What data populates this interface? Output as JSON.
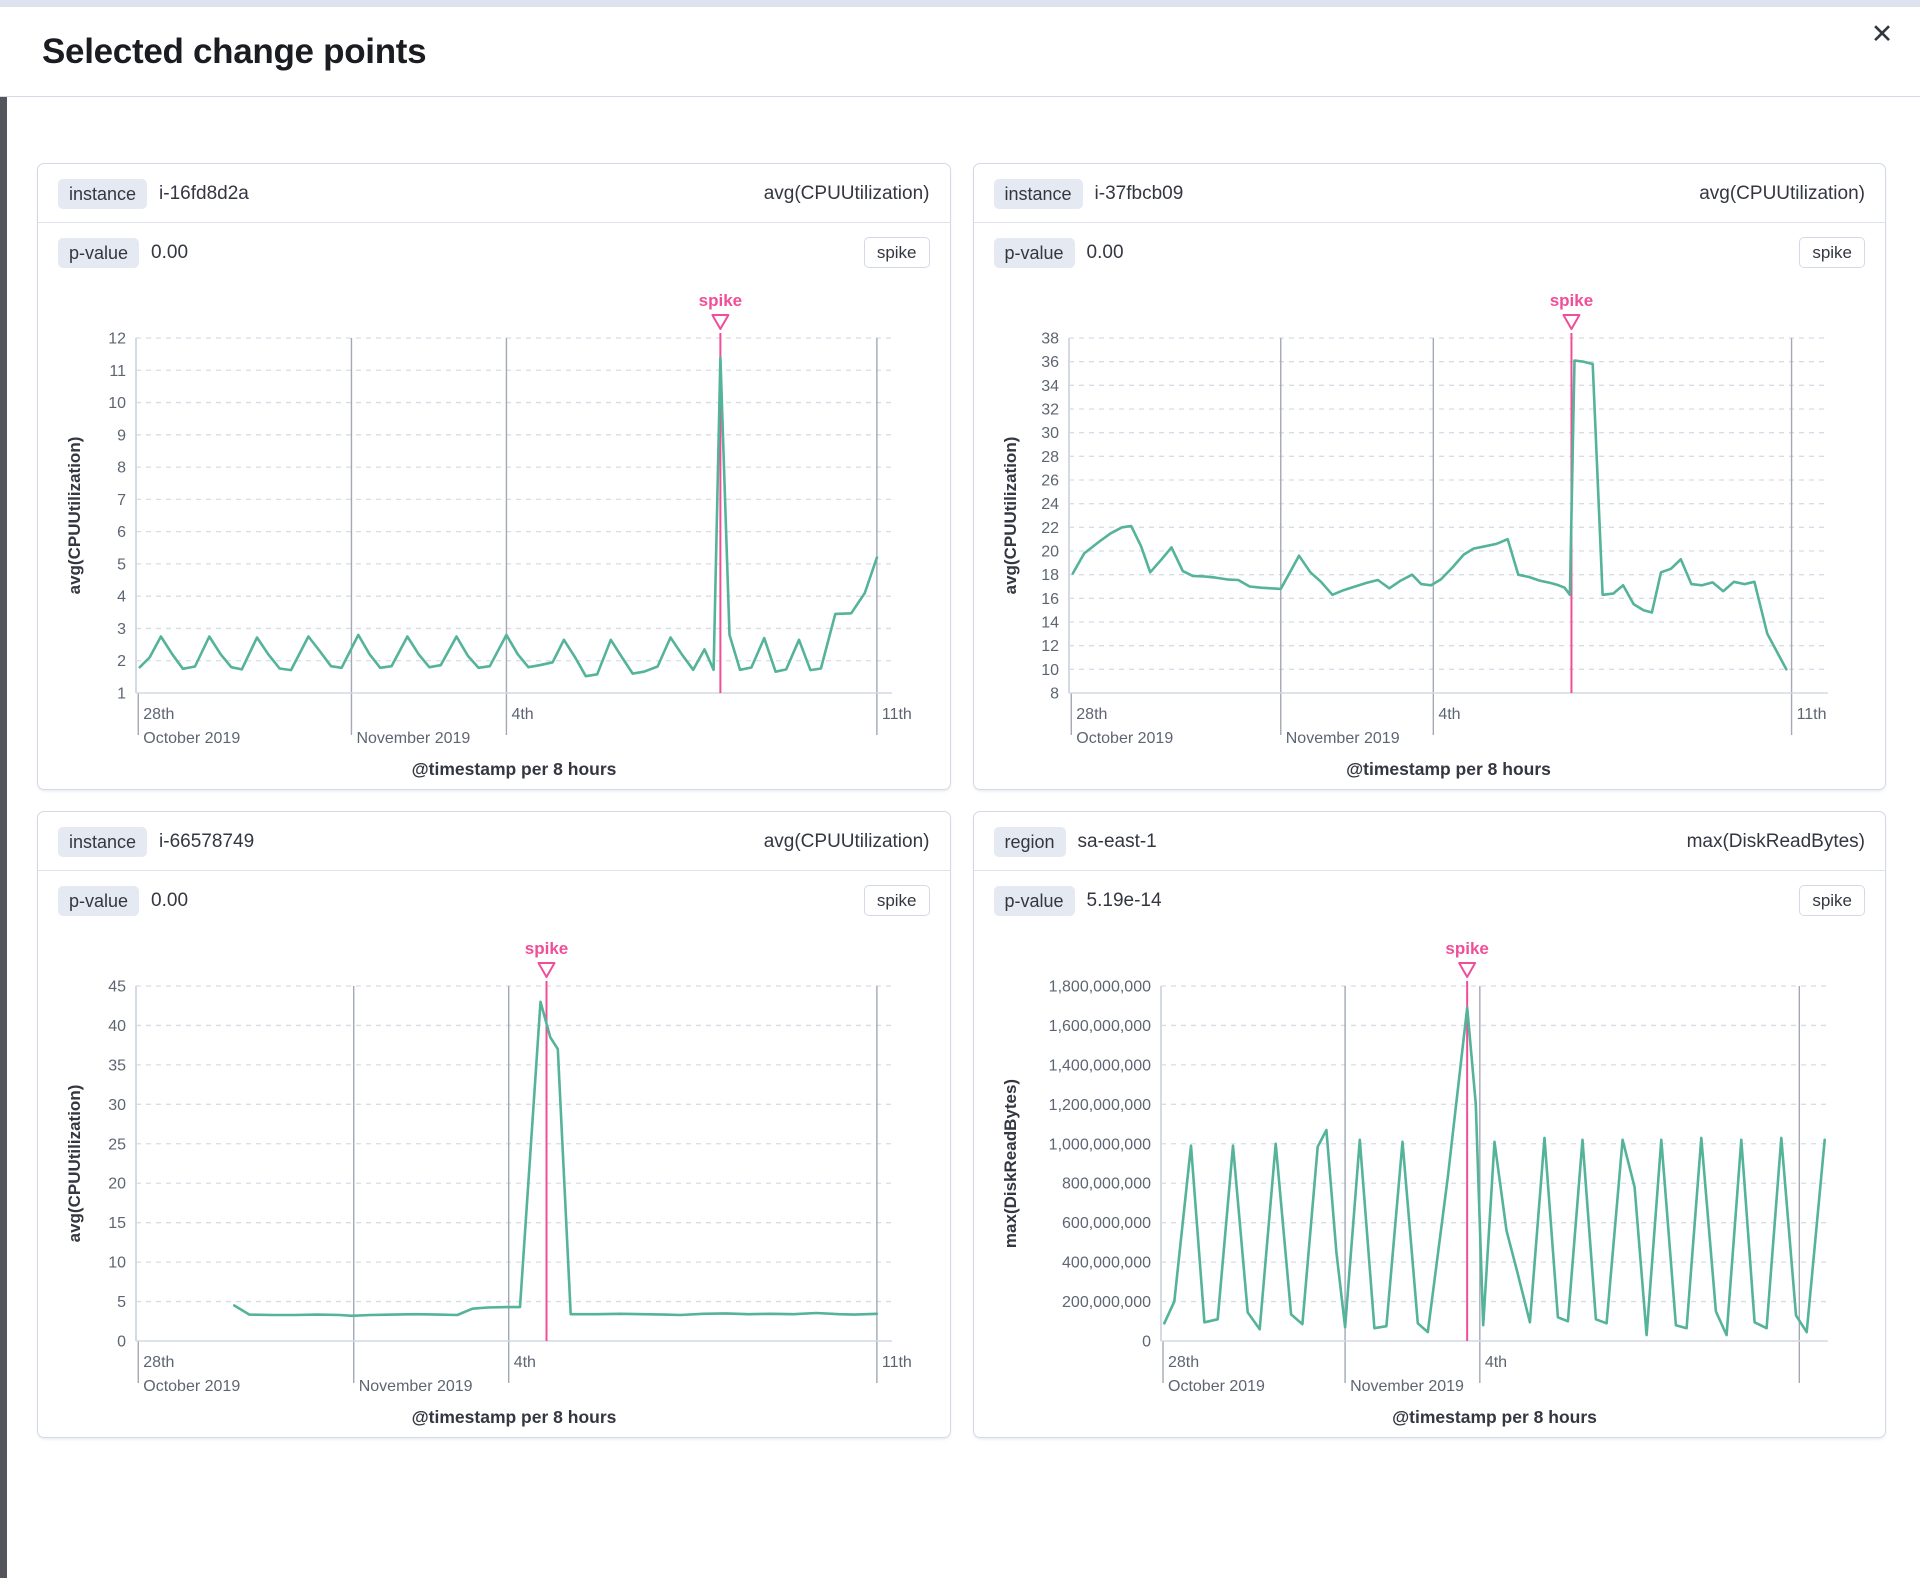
{
  "modal": {
    "title": "Selected change points"
  },
  "icons": {
    "close": "✕"
  },
  "colors": {
    "line": "#54b399",
    "accent": "#f04e98",
    "grid_dash": "#d8dce6",
    "grid_vertical": "#a2a8b4",
    "axis": "#d3dae6",
    "tick_text": "#5e6572",
    "axis_title": "#343741"
  },
  "chart_data": [
    {
      "type": "line",
      "field_badge": "instance",
      "field_value": "i-16fd8d2a",
      "metric": "avg(CPUUtilization)",
      "pvalue_label": "p-value",
      "pvalue": "0.00",
      "badge": "spike",
      "annotation": "spike",
      "xlabel": "@timestamp per 8 hours",
      "ylabel": "avg(CPUUtilization)",
      "ylim": [
        1,
        12
      ],
      "y_labels": [
        "1",
        "2",
        "3",
        "4",
        "5",
        "6",
        "7",
        "8",
        "9",
        "10",
        "11",
        "12"
      ],
      "x_ticks": [
        {
          "f": 0.003,
          "l1": "28th",
          "l2": "October 2019",
          "grid": false
        },
        {
          "f": 0.285,
          "l1": "",
          "l2": "November 2019",
          "grid": true
        },
        {
          "f": 0.49,
          "l1": "4th",
          "l2": "",
          "grid": true
        },
        {
          "f": 0.98,
          "l1": "11th",
          "l2": "",
          "grid": true
        }
      ],
      "spike_f": 0.773,
      "points": [
        [
          0.005,
          1.8
        ],
        [
          0.018,
          2.1
        ],
        [
          0.033,
          2.75
        ],
        [
          0.048,
          2.2
        ],
        [
          0.062,
          1.75
        ],
        [
          0.078,
          1.82
        ],
        [
          0.097,
          2.75
        ],
        [
          0.112,
          2.2
        ],
        [
          0.126,
          1.8
        ],
        [
          0.14,
          1.73
        ],
        [
          0.16,
          2.72
        ],
        [
          0.175,
          2.2
        ],
        [
          0.19,
          1.76
        ],
        [
          0.205,
          1.71
        ],
        [
          0.228,
          2.75
        ],
        [
          0.243,
          2.3
        ],
        [
          0.258,
          1.83
        ],
        [
          0.272,
          1.78
        ],
        [
          0.294,
          2.8
        ],
        [
          0.309,
          2.2
        ],
        [
          0.323,
          1.78
        ],
        [
          0.338,
          1.83
        ],
        [
          0.359,
          2.75
        ],
        [
          0.374,
          2.2
        ],
        [
          0.388,
          1.8
        ],
        [
          0.403,
          1.86
        ],
        [
          0.424,
          2.75
        ],
        [
          0.439,
          2.15
        ],
        [
          0.453,
          1.78
        ],
        [
          0.468,
          1.83
        ],
        [
          0.49,
          2.8
        ],
        [
          0.505,
          2.2
        ],
        [
          0.519,
          1.8
        ],
        [
          0.534,
          1.86
        ],
        [
          0.551,
          1.95
        ],
        [
          0.566,
          2.65
        ],
        [
          0.581,
          2.1
        ],
        [
          0.595,
          1.52
        ],
        [
          0.61,
          1.58
        ],
        [
          0.628,
          2.65
        ],
        [
          0.643,
          2.1
        ],
        [
          0.657,
          1.6
        ],
        [
          0.672,
          1.66
        ],
        [
          0.69,
          1.82
        ],
        [
          0.707,
          2.72
        ],
        [
          0.722,
          2.2
        ],
        [
          0.737,
          1.72
        ],
        [
          0.752,
          2.35
        ],
        [
          0.764,
          1.72
        ],
        [
          0.773,
          11.4
        ],
        [
          0.785,
          2.8
        ],
        [
          0.799,
          1.72
        ],
        [
          0.814,
          1.79
        ],
        [
          0.831,
          2.7
        ],
        [
          0.846,
          1.66
        ],
        [
          0.86,
          1.73
        ],
        [
          0.877,
          2.65
        ],
        [
          0.892,
          1.71
        ],
        [
          0.906,
          1.76
        ],
        [
          0.925,
          3.45
        ],
        [
          0.946,
          3.47
        ],
        [
          0.964,
          4.1
        ],
        [
          0.98,
          5.2
        ]
      ]
    },
    {
      "type": "line",
      "field_badge": "instance",
      "field_value": "i-37fbcb09",
      "metric": "avg(CPUUtilization)",
      "pvalue_label": "p-value",
      "pvalue": "0.00",
      "badge": "spike",
      "annotation": "spike",
      "xlabel": "@timestamp per 8 hours",
      "ylabel": "avg(CPUUtilization)",
      "ylim": [
        8,
        38
      ],
      "y_labels": [
        "8",
        "10",
        "12",
        "14",
        "16",
        "18",
        "20",
        "22",
        "24",
        "26",
        "28",
        "30",
        "32",
        "34",
        "36",
        "38"
      ],
      "x_ticks": [
        {
          "f": 0.003,
          "l1": "28th",
          "l2": "October 2019",
          "grid": false
        },
        {
          "f": 0.279,
          "l1": "",
          "l2": "November 2019",
          "grid": true
        },
        {
          "f": 0.48,
          "l1": "4th",
          "l2": "",
          "grid": true
        },
        {
          "f": 0.952,
          "l1": "11th",
          "l2": "",
          "grid": true
        }
      ],
      "spike_f": 0.662,
      "points": [
        [
          0.005,
          18.1
        ],
        [
          0.02,
          19.8
        ],
        [
          0.04,
          20.8
        ],
        [
          0.055,
          21.5
        ],
        [
          0.07,
          22.0
        ],
        [
          0.082,
          22.1
        ],
        [
          0.095,
          20.4
        ],
        [
          0.107,
          18.2
        ],
        [
          0.122,
          19.3
        ],
        [
          0.135,
          20.3
        ],
        [
          0.15,
          18.3
        ],
        [
          0.163,
          17.9
        ],
        [
          0.178,
          17.85
        ],
        [
          0.193,
          17.75
        ],
        [
          0.208,
          17.6
        ],
        [
          0.223,
          17.55
        ],
        [
          0.238,
          17.0
        ],
        [
          0.253,
          16.9
        ],
        [
          0.266,
          16.85
        ],
        [
          0.279,
          16.8
        ],
        [
          0.292,
          18.3
        ],
        [
          0.303,
          19.6
        ],
        [
          0.318,
          18.2
        ],
        [
          0.332,
          17.4
        ],
        [
          0.347,
          16.3
        ],
        [
          0.362,
          16.7
        ],
        [
          0.377,
          17.0
        ],
        [
          0.392,
          17.3
        ],
        [
          0.407,
          17.55
        ],
        [
          0.422,
          16.85
        ],
        [
          0.437,
          17.5
        ],
        [
          0.452,
          18.0
        ],
        [
          0.464,
          17.2
        ],
        [
          0.477,
          17.1
        ],
        [
          0.49,
          17.6
        ],
        [
          0.505,
          18.6
        ],
        [
          0.52,
          19.7
        ],
        [
          0.533,
          20.2
        ],
        [
          0.548,
          20.4
        ],
        [
          0.563,
          20.6
        ],
        [
          0.578,
          21.0
        ],
        [
          0.592,
          18.0
        ],
        [
          0.606,
          17.8
        ],
        [
          0.62,
          17.5
        ],
        [
          0.634,
          17.3
        ],
        [
          0.645,
          17.1
        ],
        [
          0.653,
          16.9
        ],
        [
          0.66,
          16.3
        ],
        [
          0.666,
          36.1
        ],
        [
          0.678,
          36.0
        ],
        [
          0.69,
          35.8
        ],
        [
          0.703,
          16.3
        ],
        [
          0.717,
          16.4
        ],
        [
          0.73,
          17.1
        ],
        [
          0.744,
          15.5
        ],
        [
          0.757,
          15.0
        ],
        [
          0.768,
          14.8
        ],
        [
          0.78,
          18.2
        ],
        [
          0.793,
          18.5
        ],
        [
          0.806,
          19.3
        ],
        [
          0.82,
          17.2
        ],
        [
          0.834,
          17.1
        ],
        [
          0.848,
          17.35
        ],
        [
          0.862,
          16.6
        ],
        [
          0.876,
          17.4
        ],
        [
          0.89,
          17.2
        ],
        [
          0.903,
          17.4
        ],
        [
          0.92,
          13.0
        ],
        [
          0.945,
          10.0
        ]
      ]
    },
    {
      "type": "line",
      "field_badge": "instance",
      "field_value": "i-66578749",
      "metric": "avg(CPUUtilization)",
      "pvalue_label": "p-value",
      "pvalue": "0.00",
      "badge": "spike",
      "annotation": "spike",
      "xlabel": "@timestamp per 8 hours",
      "ylabel": "avg(CPUUtilization)",
      "ylim": [
        0,
        45
      ],
      "y_labels": [
        "0",
        "5",
        "10",
        "15",
        "20",
        "25",
        "30",
        "35",
        "40",
        "45"
      ],
      "x_ticks": [
        {
          "f": 0.003,
          "l1": "28th",
          "l2": "October 2019",
          "grid": false
        },
        {
          "f": 0.288,
          "l1": "",
          "l2": "November 2019",
          "grid": true
        },
        {
          "f": 0.493,
          "l1": "4th",
          "l2": "",
          "grid": true
        },
        {
          "f": 0.98,
          "l1": "11th",
          "l2": "",
          "grid": true
        }
      ],
      "spike_f": 0.543,
      "points": [
        [
          0.13,
          4.5
        ],
        [
          0.15,
          3.35
        ],
        [
          0.18,
          3.3
        ],
        [
          0.21,
          3.3
        ],
        [
          0.24,
          3.35
        ],
        [
          0.27,
          3.3
        ],
        [
          0.285,
          3.2
        ],
        [
          0.31,
          3.3
        ],
        [
          0.34,
          3.35
        ],
        [
          0.37,
          3.4
        ],
        [
          0.4,
          3.35
        ],
        [
          0.425,
          3.3
        ],
        [
          0.445,
          4.1
        ],
        [
          0.465,
          4.25
        ],
        [
          0.49,
          4.3
        ],
        [
          0.508,
          4.3
        ],
        [
          0.535,
          43.0
        ],
        [
          0.548,
          38.5
        ],
        [
          0.558,
          37.0
        ],
        [
          0.575,
          3.4
        ],
        [
          0.61,
          3.4
        ],
        [
          0.64,
          3.45
        ],
        [
          0.67,
          3.4
        ],
        [
          0.7,
          3.35
        ],
        [
          0.72,
          3.3
        ],
        [
          0.75,
          3.45
        ],
        [
          0.78,
          3.5
        ],
        [
          0.81,
          3.4
        ],
        [
          0.84,
          3.45
        ],
        [
          0.87,
          3.4
        ],
        [
          0.9,
          3.55
        ],
        [
          0.93,
          3.4
        ],
        [
          0.95,
          3.35
        ],
        [
          0.98,
          3.45
        ]
      ]
    },
    {
      "type": "line",
      "field_badge": "region",
      "field_value": "sa-east-1",
      "metric": "max(DiskReadBytes)",
      "pvalue_label": "p-value",
      "pvalue": "5.19e-14",
      "badge": "spike",
      "annotation": "spike",
      "xlabel": "@timestamp per 8 hours",
      "ylabel": "max(DiskReadBytes)",
      "ylim": [
        0,
        1800000000
      ],
      "y_labels": [
        "0",
        "200,000,000",
        "400,000,000",
        "600,000,000",
        "800,000,000",
        "1,000,000,000",
        "1,200,000,000",
        "1,400,000,000",
        "1,600,000,000",
        "1,800,000,000"
      ],
      "x_ticks": [
        {
          "f": 0.003,
          "l1": "28th",
          "l2": "October 2019",
          "grid": false
        },
        {
          "f": 0.276,
          "l1": "",
          "l2": "November 2019",
          "grid": true
        },
        {
          "f": 0.478,
          "l1": "4th",
          "l2": "",
          "grid": true
        },
        {
          "f": 0.957,
          "l1": "",
          "l2": "",
          "grid": true
        }
      ],
      "spike_f": 0.459,
      "points": [
        [
          0.005,
          90000000
        ],
        [
          0.02,
          200000000
        ],
        [
          0.045,
          990000000
        ],
        [
          0.065,
          95000000
        ],
        [
          0.085,
          110000000
        ],
        [
          0.108,
          990000000
        ],
        [
          0.13,
          145000000
        ],
        [
          0.148,
          60000000
        ],
        [
          0.172,
          1000000000
        ],
        [
          0.195,
          135000000
        ],
        [
          0.212,
          85000000
        ],
        [
          0.235,
          985000000
        ],
        [
          0.248,
          1070000000
        ],
        [
          0.263,
          450000000
        ],
        [
          0.276,
          70000000
        ],
        [
          0.298,
          1020000000
        ],
        [
          0.32,
          65000000
        ],
        [
          0.338,
          75000000
        ],
        [
          0.362,
          1010000000
        ],
        [
          0.385,
          90000000
        ],
        [
          0.4,
          45000000
        ],
        [
          0.43,
          830000000
        ],
        [
          0.459,
          1690000000
        ],
        [
          0.472,
          1200000000
        ],
        [
          0.483,
          80000000
        ],
        [
          0.5,
          1010000000
        ],
        [
          0.518,
          560000000
        ],
        [
          0.535,
          340000000
        ],
        [
          0.553,
          95000000
        ],
        [
          0.575,
          1030000000
        ],
        [
          0.595,
          120000000
        ],
        [
          0.61,
          100000000
        ],
        [
          0.632,
          1020000000
        ],
        [
          0.652,
          110000000
        ],
        [
          0.668,
          90000000
        ],
        [
          0.692,
          1020000000
        ],
        [
          0.71,
          780000000
        ],
        [
          0.728,
          30000000
        ],
        [
          0.75,
          1020000000
        ],
        [
          0.772,
          80000000
        ],
        [
          0.788,
          65000000
        ],
        [
          0.81,
          1030000000
        ],
        [
          0.832,
          150000000
        ],
        [
          0.848,
          30000000
        ],
        [
          0.87,
          1020000000
        ],
        [
          0.89,
          95000000
        ],
        [
          0.908,
          65000000
        ],
        [
          0.93,
          1030000000
        ],
        [
          0.952,
          130000000
        ],
        [
          0.968,
          45000000
        ],
        [
          0.995,
          1020000000
        ]
      ]
    }
  ]
}
